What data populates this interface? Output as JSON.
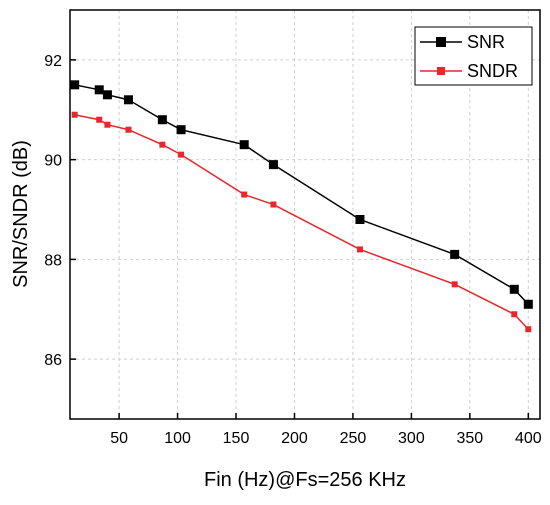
{
  "chart_data": {
    "type": "line",
    "xlabel": "Fin (Hz)@Fs=256 KHz",
    "ylabel": "SNR/SNDR (dB)",
    "xlim": [
      8,
      410
    ],
    "ylim": [
      84.8,
      93.0
    ],
    "x_ticks": [
      50,
      100,
      150,
      200,
      250,
      300,
      350,
      400
    ],
    "y_ticks": [
      86,
      88,
      90,
      92
    ],
    "x_tick_labels": [
      "50",
      "100",
      "150",
      "200",
      "250",
      "300",
      "350",
      "400"
    ],
    "y_tick_labels": [
      "86",
      "88",
      "90",
      "92"
    ],
    "grid": true,
    "legend_position": "top-right",
    "series": [
      {
        "name": "SNR",
        "color": "#000000",
        "marker": "square",
        "x": [
          12,
          33,
          40,
          58,
          87,
          103,
          157,
          182,
          256,
          337,
          388,
          400
        ],
        "y": [
          91.5,
          91.4,
          91.3,
          91.2,
          90.8,
          90.6,
          90.3,
          89.9,
          88.8,
          88.1,
          87.4,
          87.1
        ]
      },
      {
        "name": "SNDR",
        "color": "#e8262b",
        "marker": "square",
        "x": [
          12,
          33,
          40,
          58,
          87,
          103,
          157,
          182,
          256,
          337,
          388,
          400
        ],
        "y": [
          90.9,
          90.8,
          90.7,
          90.6,
          90.3,
          90.1,
          89.3,
          89.1,
          88.2,
          87.5,
          86.9,
          86.6
        ]
      }
    ]
  }
}
